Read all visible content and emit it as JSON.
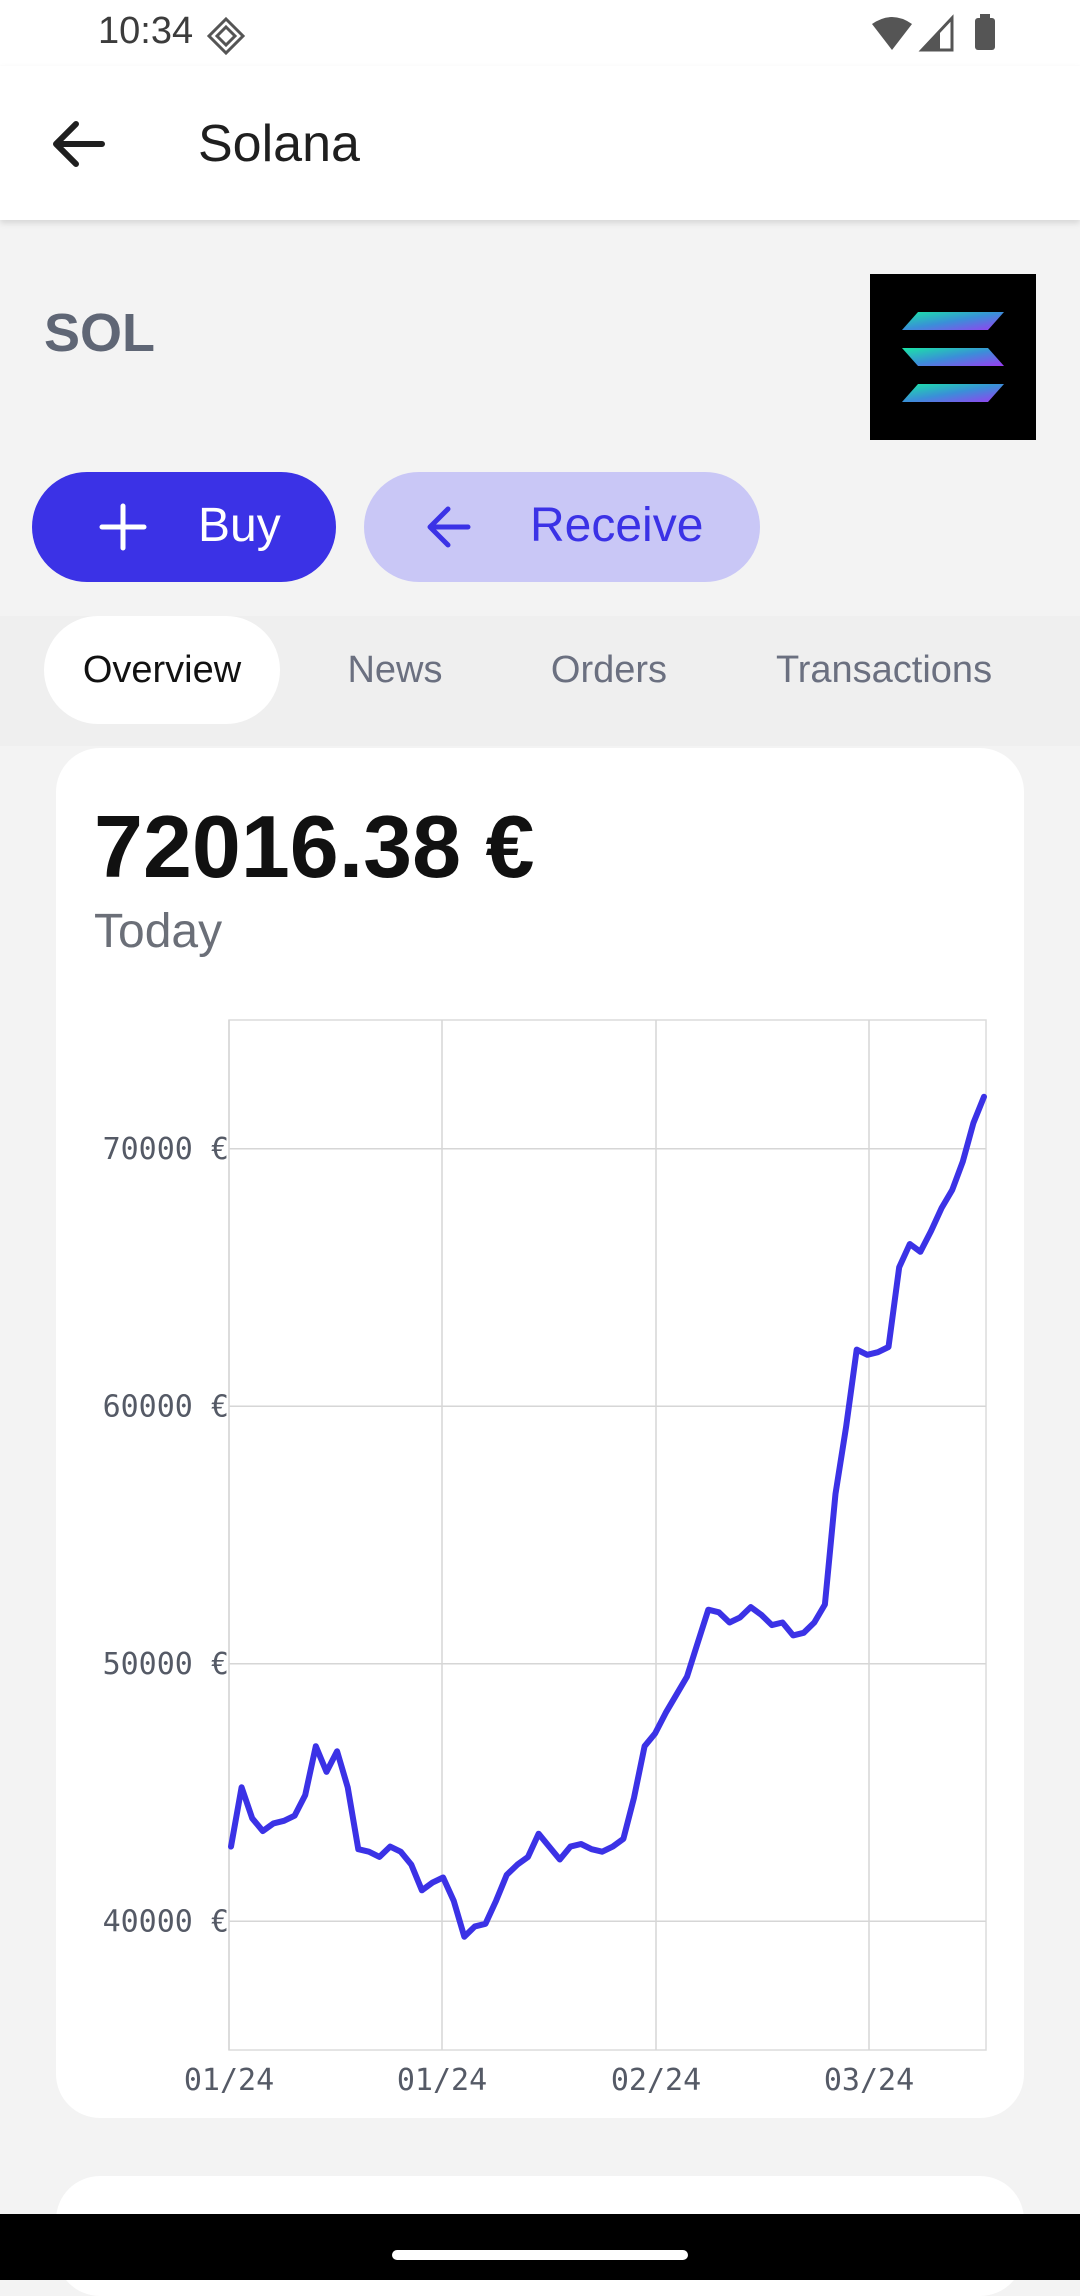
{
  "status_bar": {
    "time": "10:34"
  },
  "app_bar": {
    "title": "Solana"
  },
  "asset": {
    "symbol": "SOL"
  },
  "actions": {
    "buy_label": "Buy",
    "receive_label": "Receive"
  },
  "tabs": [
    {
      "label": "Overview",
      "active": true
    },
    {
      "label": "News",
      "active": false
    },
    {
      "label": "Orders",
      "active": false
    },
    {
      "label": "Transactions",
      "active": false
    }
  ],
  "price_card": {
    "price": "72016.38 €",
    "period": "Today"
  },
  "colors": {
    "accent": "#3b32e6",
    "accent_light": "#c9c7f6",
    "line": "#3b32e6"
  },
  "chart_data": {
    "type": "line",
    "x_tick_labels": [
      "01/24",
      "01/24",
      "02/24",
      "03/24"
    ],
    "y_ticks": [
      40000,
      50000,
      60000,
      70000
    ],
    "y_tick_labels": [
      "40000 €",
      "50000 €",
      "60000 €",
      "70000 €"
    ],
    "ylim": [
      35000,
      75000
    ],
    "grid": true,
    "series": [
      {
        "values": [
          42900,
          45200,
          44000,
          43500,
          43800,
          43900,
          44100,
          44900,
          46800,
          45800,
          46600,
          45200,
          42800,
          42700,
          42500,
          42900,
          42700,
          42200,
          41200,
          41500,
          41700,
          40800,
          39400,
          39800,
          39900,
          40800,
          41800,
          42200,
          42500,
          43400,
          42900,
          42400,
          42900,
          43000,
          42800,
          42700,
          42900,
          43200,
          44800,
          46800,
          47300,
          48100,
          48800,
          49500,
          50800,
          52100,
          52000,
          51600,
          51800,
          52200,
          51900,
          51500,
          51600,
          51100,
          51200,
          51600,
          52300,
          56600,
          59200,
          62200,
          62000,
          62100,
          62300,
          65400,
          66300,
          66000,
          66800,
          67700,
          68400,
          69500,
          71000,
          72016
        ]
      }
    ]
  }
}
